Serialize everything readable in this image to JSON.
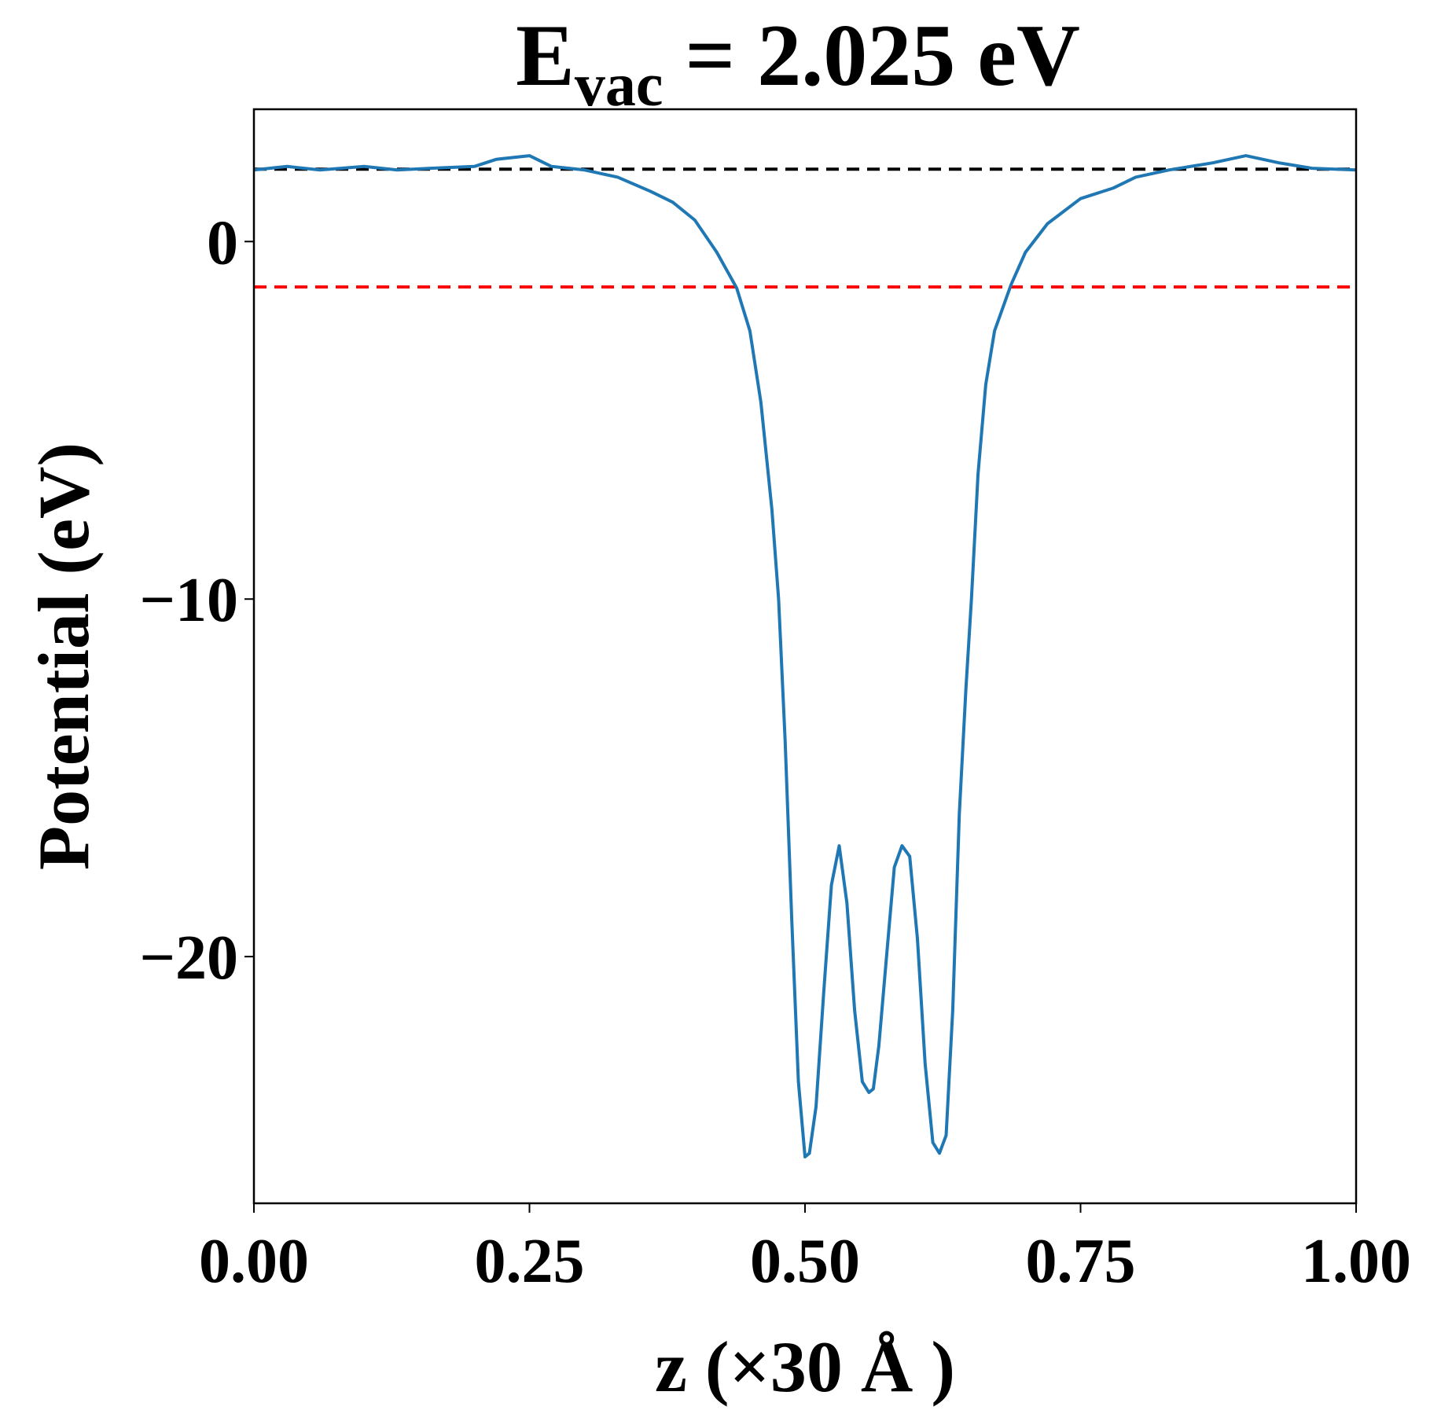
{
  "chart_data": {
    "type": "line",
    "title": [
      "E",
      "vac",
      " = 2.025 eV"
    ],
    "xlabel": "z (×30 Å )",
    "ylabel": "Potential (eV)",
    "x": [
      0,
      0.03,
      0.06,
      0.1,
      0.13,
      0.16,
      0.2,
      0.22,
      0.25,
      0.27,
      0.3,
      0.33,
      0.36,
      0.38,
      0.4,
      0.42,
      0.438,
      0.45,
      0.46,
      0.47,
      0.476,
      0.482,
      0.488,
      0.494,
      0.5,
      0.504,
      0.51,
      0.517,
      0.524,
      0.531,
      0.538,
      0.545,
      0.552,
      0.558,
      0.562,
      0.567,
      0.574,
      0.581,
      0.588,
      0.595,
      0.602,
      0.609,
      0.616,
      0.622,
      0.628,
      0.634,
      0.64,
      0.646,
      0.651,
      0.657,
      0.664,
      0.672,
      0.687,
      0.7,
      0.72,
      0.75,
      0.78,
      0.8,
      0.83,
      0.87,
      0.9,
      0.93,
      0.96,
      1.0
    ],
    "series": [
      {
        "color": "#1f77b4",
        "values": [
          2.0,
          2.1,
          2.0,
          2.1,
          2.0,
          2.05,
          2.1,
          2.3,
          2.4,
          2.1,
          2.0,
          1.8,
          1.4,
          1.1,
          0.6,
          -0.3,
          -1.3,
          -2.5,
          -4.5,
          -7.5,
          -10,
          -14,
          -19,
          -23.5,
          -25.6,
          -25.5,
          -24.2,
          -21,
          -18,
          -16.9,
          -18.5,
          -21.5,
          -23.5,
          -23.8,
          -23.7,
          -22.5,
          -20,
          -17.5,
          -16.9,
          -17.2,
          -19.5,
          -23,
          -25.2,
          -25.5,
          -25,
          -21.5,
          -16,
          -12.5,
          -10,
          -6.5,
          -4,
          -2.5,
          -1.2,
          -0.3,
          0.5,
          1.2,
          1.5,
          1.8,
          2.0,
          2.2,
          2.4,
          2.2,
          2.05,
          2.0
        ]
      }
    ],
    "hlines": [
      {
        "value": 2.025,
        "color": "#000000"
      },
      {
        "value": -1.27,
        "color": "#ff0000"
      }
    ],
    "xlim": [
      0,
      1
    ],
    "xticks": [
      {
        "value": 0,
        "label": "0.00"
      },
      {
        "value": 0.25,
        "label": "0.25"
      },
      {
        "value": 0.5,
        "label": "0.50"
      },
      {
        "value": 0.75,
        "label": "0.75"
      },
      {
        "value": 1,
        "label": "1.00"
      }
    ],
    "ylim": [
      -26.9,
      3.7
    ],
    "yticks": [
      0,
      {
        "value": -10,
        "label": "−10"
      },
      {
        "value": -20,
        "label": "−20"
      }
    ]
  }
}
